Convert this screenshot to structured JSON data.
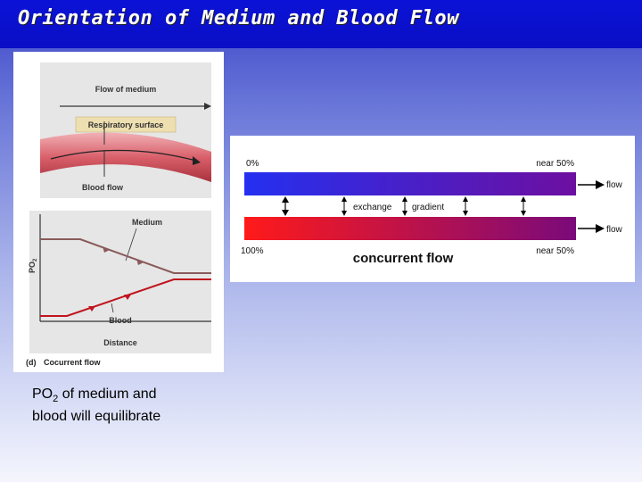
{
  "slide": {
    "title": "Orientation of Medium and Blood Flow"
  },
  "figure_d": {
    "flow_of_medium": "Flow of medium",
    "respiratory_surface": "Respiratory surface",
    "blood_flow": "Blood flow",
    "y_axis_label": "PO",
    "y_axis_sub": "2",
    "medium_label": "Medium",
    "blood_label": "Blood",
    "distance_label": "Distance",
    "panel_letter": "(d)",
    "panel_caption": "Cocurrent flow",
    "colors": {
      "medium_line": "#8a5a5a",
      "blood_line": "#c0141e",
      "tissue": "#d9606b"
    }
  },
  "gradient_diagram": {
    "top_left_label": "0%",
    "top_right_label": "near 50%",
    "top_flow_label": "flow",
    "exchange_label": "exchange",
    "gradient_label": "gradient",
    "bottom_flow_label": "flow",
    "bottom_left_label": "100%",
    "bottom_right_label": "near 50%",
    "diagram_title": "concurrent flow",
    "colors": {
      "top_start": "#2430f0",
      "top_end": "#6d0fa0",
      "bottom_start": "#ff1a1a",
      "bottom_end": "#7a0a7a"
    }
  },
  "caption": {
    "line1_prefix": "PO",
    "line1_sub": "2",
    "line1_suffix": " of medium and",
    "line2": "blood will equilibrate"
  }
}
